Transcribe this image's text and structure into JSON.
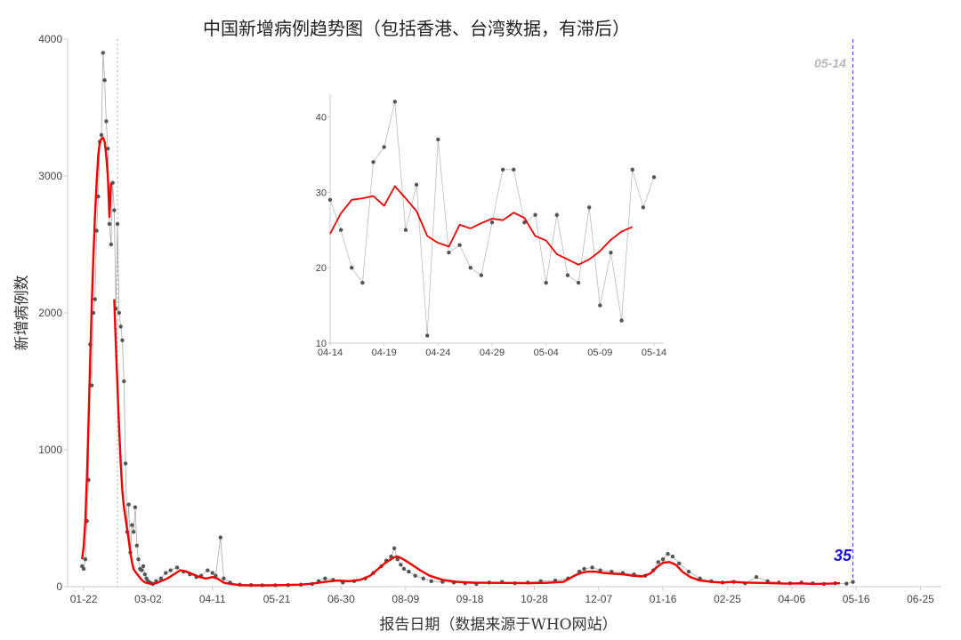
{
  "chart_data": [
    {
      "id": "main",
      "type": "line",
      "title": "中国新增病例趋势图（包括香港、台湾数据，有滞后）",
      "xlabel": "报告日期（数据来源于WHO网站）",
      "ylabel": "新增病例数",
      "ylim": [
        0,
        4000
      ],
      "y_ticks": [
        0,
        1000,
        2000,
        3000,
        4000
      ],
      "x_range": [
        "2020-01-12",
        "2021-07-08"
      ],
      "x_ticks": [
        "01-22",
        "03-02",
        "04-11",
        "05-21",
        "06-30",
        "08-09",
        "09-18",
        "10-28",
        "12-07",
        "01-16",
        "02-25",
        "04-06",
        "05-16",
        "06-25"
      ],
      "x_tick_dates": [
        "2020-01-22",
        "2020-03-02",
        "2020-04-11",
        "2020-05-21",
        "2020-06-30",
        "2020-08-09",
        "2020-09-18",
        "2020-10-28",
        "2020-12-07",
        "2021-01-16",
        "2021-02-25",
        "2021-04-06",
        "2021-05-16",
        "2021-06-25"
      ],
      "reference_lines": [
        {
          "date": "2020-02-12",
          "style": "dotted",
          "color": "#aaaaaa"
        },
        {
          "date": "2021-05-14",
          "style": "dashed",
          "color": "#4040ff",
          "label": "05-14"
        }
      ],
      "last_value_label": "35",
      "grid": false,
      "series": [
        {
          "type": "daily-points",
          "color": "#555555",
          "x": [
            "2020-01-21",
            "2020-01-22",
            "2020-01-23",
            "2020-01-24",
            "2020-01-25",
            "2020-01-26",
            "2020-01-27",
            "2020-01-28",
            "2020-01-29",
            "2020-01-30",
            "2020-01-31",
            "2020-02-01",
            "2020-02-02",
            "2020-02-03",
            "2020-02-04",
            "2020-02-05",
            "2020-02-06",
            "2020-02-07",
            "2020-02-08",
            "2020-02-09",
            "2020-02-10",
            "2020-02-11",
            "2020-02-12",
            "2020-02-13",
            "2020-02-14",
            "2020-02-15",
            "2020-02-16",
            "2020-02-17",
            "2020-02-18",
            "2020-02-19",
            "2020-02-20",
            "2020-02-21",
            "2020-02-22",
            "2020-02-23",
            "2020-02-24",
            "2020-02-25",
            "2020-02-26",
            "2020-02-27",
            "2020-02-28",
            "2020-02-29",
            "2020-03-01",
            "2020-03-02",
            "2020-03-03",
            "2020-03-04",
            "2020-03-05",
            "2020-03-07",
            "2020-03-10",
            "2020-03-13",
            "2020-03-16",
            "2020-03-20",
            "2020-03-24",
            "2020-03-28",
            "2020-04-01",
            "2020-04-04",
            "2020-04-08",
            "2020-04-11",
            "2020-04-13",
            "2020-04-16",
            "2020-04-18",
            "2020-04-22",
            "2020-04-28",
            "2020-05-05",
            "2020-05-12",
            "2020-05-20",
            "2020-05-28",
            "2020-06-05",
            "2020-06-12",
            "2020-06-16",
            "2020-06-20",
            "2020-06-25",
            "2020-07-01",
            "2020-07-08",
            "2020-07-15",
            "2020-07-20",
            "2020-07-25",
            "2020-07-28",
            "2020-07-31",
            "2020-08-02",
            "2020-08-04",
            "2020-08-06",
            "2020-08-08",
            "2020-08-11",
            "2020-08-15",
            "2020-08-20",
            "2020-08-25",
            "2020-09-01",
            "2020-09-08",
            "2020-09-15",
            "2020-09-22",
            "2020-09-30",
            "2020-10-08",
            "2020-10-16",
            "2020-10-24",
            "2020-11-01",
            "2020-11-10",
            "2020-11-18",
            "2020-11-25",
            "2020-11-28",
            "2020-12-03",
            "2020-12-08",
            "2020-12-15",
            "2020-12-22",
            "2020-12-29",
            "2021-01-05",
            "2021-01-10",
            "2021-01-13",
            "2021-01-16",
            "2021-01-19",
            "2021-01-22",
            "2021-01-26",
            "2021-02-01",
            "2021-02-08",
            "2021-02-15",
            "2021-02-22",
            "2021-03-01",
            "2021-03-08",
            "2021-03-15",
            "2021-03-22",
            "2021-03-29",
            "2021-04-05",
            "2021-04-12",
            "2021-04-19",
            "2021-04-26",
            "2021-05-03",
            "2021-05-10",
            "2021-05-14"
          ],
          "values": [
            150,
            130,
            200,
            480,
            780,
            1770,
            1470,
            2000,
            2100,
            2600,
            2850,
            3250,
            3300,
            3900,
            3700,
            3400,
            3200,
            2650,
            2500,
            2950,
            2750,
            2030,
            2650,
            2000,
            1900,
            1800,
            1500,
            900,
            400,
            600,
            250,
            450,
            400,
            580,
            300,
            200,
            130,
            120,
            150,
            90,
            60,
            40,
            30,
            25,
            20,
            40,
            60,
            100,
            120,
            140,
            110,
            90,
            70,
            80,
            120,
            100,
            80,
            360,
            60,
            30,
            15,
            12,
            10,
            10,
            12,
            15,
            20,
            40,
            60,
            50,
            30,
            40,
            60,
            100,
            150,
            190,
            220,
            280,
            200,
            160,
            130,
            110,
            80,
            60,
            40,
            35,
            30,
            25,
            20,
            30,
            35,
            25,
            30,
            40,
            45,
            60,
            110,
            130,
            140,
            120,
            110,
            100,
            90,
            80,
            120,
            180,
            200,
            240,
            220,
            170,
            110,
            60,
            40,
            30,
            35,
            25,
            70,
            40,
            30,
            25,
            30,
            25,
            20,
            25,
            22,
            35
          ]
        },
        {
          "type": "moving-average",
          "color": "#ee0000",
          "segments": [
            {
              "x": [
                "2020-01-21",
                "2020-01-22",
                "2020-01-23",
                "2020-01-24",
                "2020-01-25",
                "2020-01-26",
                "2020-01-27",
                "2020-01-28",
                "2020-01-29",
                "2020-01-30",
                "2020-01-31",
                "2020-02-01",
                "2020-02-02",
                "2020-02-03",
                "2020-02-04",
                "2020-02-05",
                "2020-02-06",
                "2020-02-07",
                "2020-02-08"
              ],
              "values": [
                200,
                300,
                480,
                800,
                1200,
                1650,
                2050,
                2400,
                2700,
                2950,
                3150,
                3250,
                3270,
                3280,
                3250,
                3150,
                3000,
                2700,
                2950
              ]
            },
            {
              "x": [
                "2020-02-10",
                "2020-02-11",
                "2020-02-12",
                "2020-02-13",
                "2020-02-14",
                "2020-02-15",
                "2020-02-16",
                "2020-02-17",
                "2020-02-18",
                "2020-02-19",
                "2020-02-20",
                "2020-02-21",
                "2020-02-22",
                "2020-02-23",
                "2020-02-24",
                "2020-02-25",
                "2020-02-26",
                "2020-02-27",
                "2020-02-28",
                "2020-02-29",
                "2020-03-01",
                "2020-03-02",
                "2020-03-04",
                "2020-03-07",
                "2020-03-10",
                "2020-03-14",
                "2020-03-18",
                "2020-03-22",
                "2020-03-26",
                "2020-03-30",
                "2020-04-03",
                "2020-04-07",
                "2020-04-11",
                "2020-04-14",
                "2020-04-18",
                "2020-04-22",
                "2020-04-28",
                "2020-05-05",
                "2020-05-15",
                "2020-05-25",
                "2020-06-05",
                "2020-06-12",
                "2020-06-20",
                "2020-06-28",
                "2020-07-05",
                "2020-07-12",
                "2020-07-18",
                "2020-07-23",
                "2020-07-27",
                "2020-07-31",
                "2020-08-02",
                "2020-08-04",
                "2020-08-06",
                "2020-08-09",
                "2020-08-13",
                "2020-08-18",
                "2020-08-24",
                "2020-09-01",
                "2020-09-10",
                "2020-09-20",
                "2020-10-01",
                "2020-10-12",
                "2020-10-24",
                "2020-11-05",
                "2020-11-15",
                "2020-11-22",
                "2020-11-26",
                "2020-11-30",
                "2020-12-05",
                "2020-12-10",
                "2020-12-16",
                "2020-12-22",
                "2020-12-28",
                "2021-01-03",
                "2021-01-08",
                "2021-01-12",
                "2021-01-16",
                "2021-01-20",
                "2021-01-24",
                "2021-01-28",
                "2021-02-02",
                "2021-02-08",
                "2021-02-15",
                "2021-02-22",
                "2021-02-28",
                "2021-03-08",
                "2021-03-16",
                "2021-03-24",
                "2021-04-01",
                "2021-04-10",
                "2021-04-20",
                "2021-04-30",
                "2021-05-06"
              ],
              "values": [
                2100,
                1750,
                1450,
                1150,
                900,
                700,
                580,
                500,
                420,
                340,
                250,
                180,
                130,
                110,
                95,
                80,
                65,
                50,
                40,
                32,
                28,
                25,
                20,
                25,
                40,
                60,
                90,
                120,
                110,
                90,
                70,
                60,
                70,
                60,
                30,
                20,
                12,
                10,
                10,
                12,
                15,
                22,
                35,
                45,
                40,
                50,
                80,
                130,
                170,
                200,
                215,
                220,
                210,
                190,
                160,
                120,
                80,
                50,
                35,
                30,
                28,
                27,
                26,
                28,
                35,
                80,
                100,
                110,
                110,
                100,
                95,
                90,
                80,
                75,
                95,
                140,
                175,
                180,
                160,
                110,
                70,
                45,
                35,
                30,
                35,
                30,
                28,
                25,
                22,
                24,
                20,
                22,
                25
              ]
            }
          ]
        }
      ]
    },
    {
      "id": "inset",
      "type": "line",
      "title": "",
      "xlabel": "",
      "ylabel": "",
      "ylim": [
        10,
        43
      ],
      "y_ticks": [
        10,
        20,
        30,
        40
      ],
      "x_ticks": [
        "04-14",
        "04-19",
        "04-24",
        "04-29",
        "05-04",
        "05-09",
        "05-14"
      ],
      "x_tick_days": [
        0,
        5,
        10,
        15,
        20,
        25,
        30
      ],
      "grid": false,
      "series": [
        {
          "type": "daily",
          "color": "#999999",
          "days": [
            0,
            1,
            2,
            3,
            4,
            5,
            6,
            7,
            8,
            9,
            10,
            11,
            12,
            13,
            14,
            15,
            16,
            17,
            18,
            19,
            20,
            21,
            22,
            23,
            24,
            25,
            26,
            27,
            28,
            29,
            30
          ],
          "values": [
            29,
            25,
            20,
            18,
            34,
            36,
            42,
            25,
            31,
            11,
            37,
            22,
            23,
            20,
            19,
            26,
            33,
            33,
            26,
            27,
            18,
            27,
            19,
            18,
            28,
            15,
            22,
            13,
            33,
            28,
            32
          ]
        },
        {
          "type": "moving-average",
          "color": "#ee0000",
          "days": [
            0,
            1,
            2,
            3,
            4,
            5,
            6,
            7,
            8,
            9,
            10,
            11,
            12,
            13,
            14,
            15,
            16,
            17,
            18,
            19,
            20,
            21,
            22,
            23,
            24,
            25,
            26,
            27,
            28
          ],
          "values": [
            24.5,
            27.2,
            29,
            29.2,
            29.5,
            28.2,
            30.8,
            29.2,
            27.5,
            24.2,
            23.3,
            22.8,
            25.7,
            25.2,
            25.9,
            26.5,
            26.3,
            27.3,
            26.6,
            24.2,
            23.6,
            21.8,
            21.1,
            20.4,
            21.1,
            22.2,
            23.7,
            24.8,
            25.4
          ]
        }
      ]
    }
  ]
}
